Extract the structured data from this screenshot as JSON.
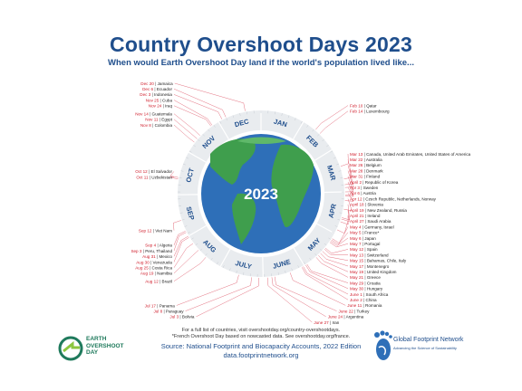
{
  "title": "Country Overshoot Days 2023",
  "subtitle": "When would Earth Overshoot Day land if the world's population lived like...",
  "center_label": "2023",
  "notes": {
    "line1": "For a full list of countries, visit overshootday.org/country-overshootdays.",
    "line2": "*French Overshoot Day based on nowcasted data. See overshootday.org/france."
  },
  "source": {
    "line1": "Source: National Footprint and Biocapacity Accounts, 2022 Edition",
    "line2": "data.footprintnetwork.org"
  },
  "logos": {
    "eod_line1": "EARTH",
    "eod_line2": "OVERSHOOT",
    "eod_line3": "DAY",
    "gfn_name": "Global Footprint Network",
    "gfn_tagline": "Advancing the Science of Sustainability"
  },
  "colors": {
    "title": "#1f4e8c",
    "date": "#d0202e",
    "leader": "#e06070",
    "ring": "#e9ecef",
    "ring_label": "#1f4e8c",
    "ocean": "#2e6fb8",
    "land": "#3f9e4d"
  },
  "chart_data": {
    "type": "radial-timeline",
    "title": "Country Overshoot Days 2023",
    "months": [
      "JAN",
      "FEB",
      "MAR",
      "APR",
      "MAY",
      "JUNE",
      "JULY",
      "AUG",
      "SEP",
      "OCT",
      "NOV",
      "DEC"
    ],
    "entries": [
      {
        "date": "Feb 10",
        "country": "Qatar",
        "day": 41
      },
      {
        "date": "Feb 14",
        "country": "Luxembourg",
        "day": 45
      },
      {
        "date": "Mar 13",
        "country": "Canada, United Arab Emirates, United States of America",
        "day": 72
      },
      {
        "date": "Mar 22",
        "country": "Australia",
        "day": 81
      },
      {
        "date": "Mar 26",
        "country": "Belgium",
        "day": 85
      },
      {
        "date": "Mar 28",
        "country": "Denmark",
        "day": 87
      },
      {
        "date": "Mar 31",
        "country": "Finland",
        "day": 90
      },
      {
        "date": "April 2",
        "country": "Republic of Korea",
        "day": 92
      },
      {
        "date": "Apr 3",
        "country": "Sweden",
        "day": 93
      },
      {
        "date": "Apr 6",
        "country": "Austria",
        "day": 96
      },
      {
        "date": "Apr 12",
        "country": "Czech Republic, Netherlands, Norway",
        "day": 102
      },
      {
        "date": "April 18",
        "country": "Slovenia",
        "day": 108
      },
      {
        "date": "April 19",
        "country": "New Zealand, Russia",
        "day": 109
      },
      {
        "date": "April 21",
        "country": "Ireland",
        "day": 111
      },
      {
        "date": "April 27",
        "country": "Saudi Arabia",
        "day": 117
      },
      {
        "date": "May 4",
        "country": "Germany, Israel",
        "day": 124
      },
      {
        "date": "May 5",
        "country": "France*",
        "day": 125
      },
      {
        "date": "May 6",
        "country": "Japan",
        "day": 126
      },
      {
        "date": "May 7",
        "country": "Portugal",
        "day": 127
      },
      {
        "date": "May 12",
        "country": "Spain",
        "day": 132
      },
      {
        "date": "May 13",
        "country": "Switzerland",
        "day": 133
      },
      {
        "date": "May 15",
        "country": "Bahamas, Chile, Italy",
        "day": 135
      },
      {
        "date": "May 17",
        "country": "Montenegro",
        "day": 137
      },
      {
        "date": "May 19",
        "country": "United Kingdom",
        "day": 139
      },
      {
        "date": "May 21",
        "country": "Greece",
        "day": 141
      },
      {
        "date": "May 29",
        "country": "Croatia",
        "day": 149
      },
      {
        "date": "May 30",
        "country": "Hungary",
        "day": 150
      },
      {
        "date": "June 1",
        "country": "South Africa",
        "day": 152
      },
      {
        "date": "June 2",
        "country": "China",
        "day": 153
      },
      {
        "date": "June 11",
        "country": "Romania",
        "day": 162
      },
      {
        "date": "June 22",
        "country": "Turkey",
        "day": 173
      },
      {
        "date": "June 24",
        "country": "Argentina",
        "day": 175
      },
      {
        "date": "June 27",
        "country": "Iran",
        "day": 178
      },
      {
        "date": "Jul 3",
        "country": "Bolivia",
        "day": 184
      },
      {
        "date": "Jul 8",
        "country": "Paraguay",
        "day": 189
      },
      {
        "date": "Jul 17",
        "country": "Panama",
        "day": 198
      },
      {
        "date": "Aug 12",
        "country": "Brazil",
        "day": 224
      },
      {
        "date": "Aug 19",
        "country": "Namibia",
        "day": 231
      },
      {
        "date": "Aug 25",
        "country": "Costa Rica",
        "day": 237
      },
      {
        "date": "Aug 30",
        "country": "Venezuela",
        "day": 242
      },
      {
        "date": "Aug 31",
        "country": "Mexico",
        "day": 243
      },
      {
        "date": "Sep 3",
        "country": "Peru, Thailand",
        "day": 246
      },
      {
        "date": "Sep 4",
        "country": "Algeria",
        "day": 247
      },
      {
        "date": "Sep 12",
        "country": "Viet Nam",
        "day": 255
      },
      {
        "date": "Oct 11",
        "country": "Uzbekistan",
        "day": 284
      },
      {
        "date": "Oct 12",
        "country": "El Salvador",
        "day": 285
      },
      {
        "date": "Nov 8",
        "country": "Colombia",
        "day": 312
      },
      {
        "date": "Nov 11",
        "country": "Egypt",
        "day": 315
      },
      {
        "date": "Nov 14",
        "country": "Guatemala",
        "day": 318
      },
      {
        "date": "Nov 24",
        "country": "Iraq",
        "day": 328
      },
      {
        "date": "Nov 25",
        "country": "Cuba",
        "day": 329
      },
      {
        "date": "Dec 3",
        "country": "Indonesia",
        "day": 337
      },
      {
        "date": "Dec 6",
        "country": "Ecuador",
        "day": 340
      },
      {
        "date": "Dec 20",
        "country": "Jamaica",
        "day": 354
      }
    ]
  }
}
